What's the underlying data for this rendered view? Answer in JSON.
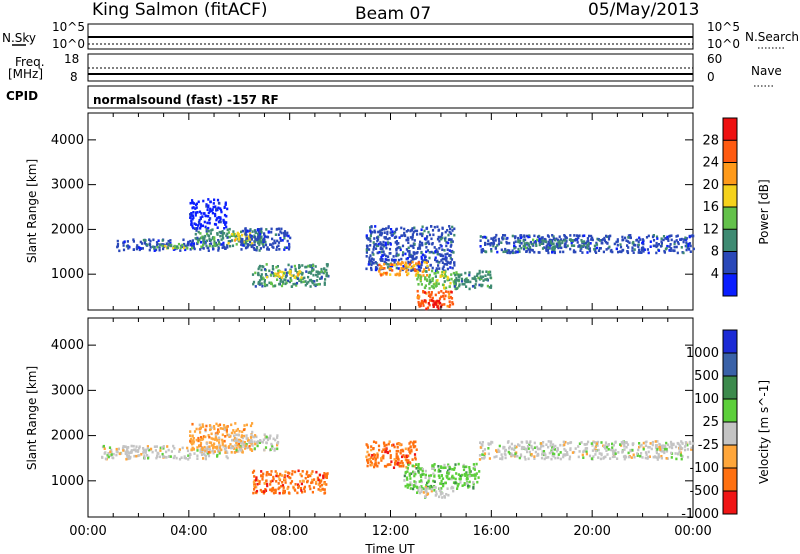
{
  "header": {
    "station": "King Salmon (fitACF)",
    "beam": "Beam 07",
    "date": "05/May/2013"
  },
  "sky_panel": {
    "left_label": "N.Sky",
    "left_ticks": [
      "10^5",
      "10^0"
    ],
    "right_label": "N.Search",
    "right_ticks": [
      "10^5",
      "10^0"
    ]
  },
  "freq_panel": {
    "left_label_1": "Freq.",
    "left_label_2": "[MHz]",
    "left_ticks": [
      "18",
      "8"
    ],
    "right_label": "Nave",
    "right_ticks": [
      "60",
      "0"
    ]
  },
  "cpid_panel": {
    "label": "CPID",
    "program": "normalsound (fast) -157 RF"
  },
  "chart_data": [
    {
      "type": "heatmap",
      "name": "power",
      "x_range_hours": [
        0,
        24
      ],
      "ylabel": "Slant Range [km]",
      "ylim": [
        200,
        4600
      ],
      "yticks": [
        "1000",
        "2000",
        "3000",
        "4000"
      ],
      "colorbar": {
        "label": "Power [dB]",
        "ticks": [
          "4",
          "8",
          "12",
          "16",
          "20",
          "24",
          "28"
        ],
        "colors": [
          "#0a1eff",
          "#2a48b8",
          "#3e8a72",
          "#63c14a",
          "#f5d21c",
          "#ff9a1a",
          "#ff5a10",
          "#ee1010"
        ]
      },
      "regions": [
        {
          "t0": 1.0,
          "t1": 5.5,
          "r0": 1550,
          "r1": 1800,
          "level": 1
        },
        {
          "t0": 2.5,
          "t1": 4.5,
          "r0": 1600,
          "r1": 1700,
          "level": 3
        },
        {
          "t0": 4.2,
          "t1": 7.0,
          "r0": 1650,
          "r1": 2050,
          "level": 2
        },
        {
          "t0": 5.5,
          "t1": 6.5,
          "r0": 1700,
          "r1": 1950,
          "level": 4
        },
        {
          "t0": 4.0,
          "t1": 5.5,
          "r0": 2050,
          "r1": 2700,
          "level": 0
        },
        {
          "t0": 6.0,
          "t1": 8.0,
          "r0": 1550,
          "r1": 2050,
          "level": 1
        },
        {
          "t0": 6.5,
          "t1": 9.5,
          "r0": 750,
          "r1": 1250,
          "level": 2
        },
        {
          "t0": 7.0,
          "t1": 8.5,
          "r0": 950,
          "r1": 1100,
          "level": 4
        },
        {
          "t0": 11.0,
          "t1": 14.5,
          "r0": 1100,
          "r1": 2100,
          "level": 1
        },
        {
          "t0": 11.5,
          "t1": 13.5,
          "r0": 1000,
          "r1": 1300,
          "level": 5
        },
        {
          "t0": 13.0,
          "t1": 14.8,
          "r0": 700,
          "r1": 1100,
          "level": 3
        },
        {
          "t0": 13.0,
          "t1": 14.5,
          "r0": 300,
          "r1": 650,
          "level": 6
        },
        {
          "t0": 13.3,
          "t1": 14.0,
          "r0": 250,
          "r1": 450,
          "level": 7
        },
        {
          "t0": 14.5,
          "t1": 16.0,
          "r0": 700,
          "r1": 1100,
          "level": 2
        },
        {
          "t0": 15.5,
          "t1": 24.0,
          "r0": 1500,
          "r1": 1900,
          "level": 1
        },
        {
          "t0": 17.0,
          "t1": 20.0,
          "r0": 1600,
          "r1": 1800,
          "level": 2
        }
      ]
    },
    {
      "type": "heatmap",
      "name": "velocity",
      "x_range_hours": [
        0,
        24
      ],
      "xlabel": "Time UT",
      "xticks": [
        "00:00",
        "04:00",
        "08:00",
        "12:00",
        "16:00",
        "20:00",
        "00:00"
      ],
      "ylabel": "Slant Range [km]",
      "ylim": [
        200,
        4600
      ],
      "yticks": [
        "1000",
        "2000",
        "3000",
        "4000"
      ],
      "colorbar": {
        "label": "Velocity [m s^-1]",
        "ticks": [
          "1000",
          "500",
          "100",
          "25",
          "-25",
          "-100",
          "-500",
          "-1000"
        ],
        "colors": [
          "#1c2bd6",
          "#3a62a8",
          "#3c8a4c",
          "#5ccf3a",
          "#c4c4c4",
          "#ffa63a",
          "#ff7010",
          "#f01515"
        ]
      },
      "regions": [
        {
          "t0": 0.5,
          "t1": 5.5,
          "r0": 1500,
          "r1": 1800,
          "level": 4
        },
        {
          "t0": 4.0,
          "t1": 6.5,
          "r0": 1650,
          "r1": 2300,
          "level": 5
        },
        {
          "t0": 5.5,
          "t1": 7.5,
          "r0": 1700,
          "r1": 2050,
          "level": 4
        },
        {
          "t0": 6.5,
          "t1": 9.5,
          "r0": 750,
          "r1": 1250,
          "level": 6
        },
        {
          "t0": 11.0,
          "t1": 13.0,
          "r0": 1300,
          "r1": 1900,
          "level": 6
        },
        {
          "t0": 12.5,
          "t1": 15.5,
          "r0": 850,
          "r1": 1400,
          "level": 3
        },
        {
          "t0": 13.0,
          "t1": 14.5,
          "r0": 650,
          "r1": 900,
          "level": 4
        },
        {
          "t0": 15.5,
          "t1": 24.0,
          "r0": 1500,
          "r1": 1900,
          "level": 4
        }
      ]
    }
  ]
}
